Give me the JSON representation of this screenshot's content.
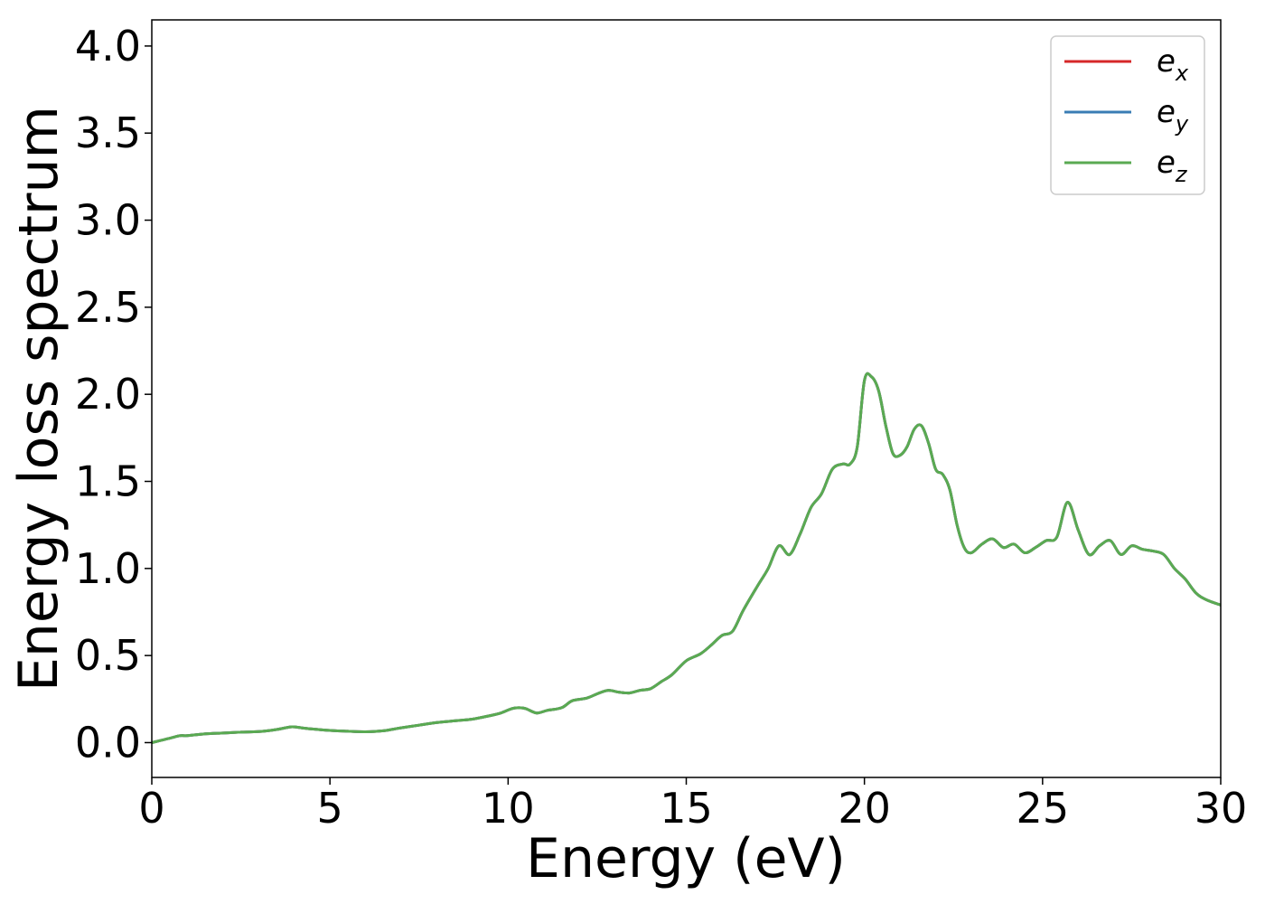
{
  "chart_data": {
    "type": "line",
    "xlabel": "Energy (eV)",
    "ylabel": "Energy loss spectrum",
    "xlim": [
      0,
      30
    ],
    "ylim": [
      -0.2,
      4.15
    ],
    "xticks": [
      0,
      5,
      10,
      15,
      20,
      25,
      30
    ],
    "xtick_labels": [
      "0",
      "5",
      "10",
      "15",
      "20",
      "25",
      "30"
    ],
    "yticks": [
      0.0,
      0.5,
      1.0,
      1.5,
      2.0,
      2.5,
      3.0,
      3.5,
      4.0
    ],
    "ytick_labels": [
      "0.0",
      "0.5",
      "1.0",
      "1.5",
      "2.0",
      "2.5",
      "3.0",
      "3.5",
      "4.0"
    ],
    "grid": false,
    "legend_position": "top-right",
    "x": [
      0,
      0.5,
      0.8,
      1.0,
      1.5,
      2.0,
      2.5,
      3.0,
      3.5,
      3.9,
      4.2,
      4.5,
      5.0,
      5.5,
      6.0,
      6.5,
      7.0,
      7.5,
      8.0,
      8.5,
      9.0,
      9.5,
      9.8,
      10.1,
      10.3,
      10.5,
      10.8,
      11.1,
      11.5,
      11.8,
      12.2,
      12.5,
      12.8,
      13.1,
      13.4,
      13.7,
      14.0,
      14.3,
      14.6,
      15.0,
      15.4,
      15.7,
      16.0,
      16.3,
      16.6,
      17.0,
      17.3,
      17.6,
      17.9,
      18.2,
      18.5,
      18.8,
      19.1,
      19.4,
      19.6,
      19.8,
      20.0,
      20.2,
      20.4,
      20.6,
      20.8,
      21.0,
      21.2,
      21.4,
      21.6,
      21.8,
      22.0,
      22.2,
      22.4,
      22.6,
      22.8,
      23.0,
      23.3,
      23.6,
      23.9,
      24.2,
      24.5,
      24.8,
      25.1,
      25.4,
      25.7,
      26.0,
      26.3,
      26.6,
      26.9,
      27.2,
      27.5,
      27.8,
      28.1,
      28.4,
      28.7,
      29.0,
      29.3,
      29.6,
      30.0
    ],
    "series": [
      {
        "name": "e_x",
        "color": "#d62728",
        "values": [
          0.0,
          0.025,
          0.04,
          0.04,
          0.05,
          0.055,
          0.06,
          0.063,
          0.075,
          0.09,
          0.085,
          0.078,
          0.07,
          0.065,
          0.062,
          0.068,
          0.085,
          0.1,
          0.115,
          0.125,
          0.135,
          0.155,
          0.17,
          0.195,
          0.2,
          0.195,
          0.17,
          0.185,
          0.2,
          0.24,
          0.255,
          0.28,
          0.3,
          0.29,
          0.285,
          0.3,
          0.31,
          0.35,
          0.39,
          0.47,
          0.51,
          0.56,
          0.615,
          0.64,
          0.76,
          0.9,
          1.0,
          1.13,
          1.08,
          1.2,
          1.35,
          1.43,
          1.57,
          1.6,
          1.6,
          1.7,
          2.08,
          2.1,
          2.02,
          1.82,
          1.66,
          1.65,
          1.7,
          1.8,
          1.82,
          1.72,
          1.57,
          1.54,
          1.45,
          1.25,
          1.12,
          1.09,
          1.14,
          1.17,
          1.12,
          1.14,
          1.09,
          1.12,
          1.16,
          1.18,
          1.38,
          1.22,
          1.08,
          1.13,
          1.16,
          1.08,
          1.13,
          1.11,
          1.1,
          1.08,
          1.0,
          0.94,
          0.86,
          0.82,
          0.79
        ]
      },
      {
        "name": "e_y",
        "color": "#3a7db4",
        "values": [
          0.0,
          0.025,
          0.04,
          0.04,
          0.05,
          0.055,
          0.06,
          0.063,
          0.075,
          0.09,
          0.085,
          0.078,
          0.07,
          0.065,
          0.062,
          0.068,
          0.085,
          0.1,
          0.115,
          0.125,
          0.135,
          0.155,
          0.17,
          0.195,
          0.2,
          0.195,
          0.17,
          0.185,
          0.2,
          0.24,
          0.255,
          0.28,
          0.3,
          0.29,
          0.285,
          0.3,
          0.31,
          0.35,
          0.39,
          0.47,
          0.51,
          0.56,
          0.615,
          0.64,
          0.76,
          0.9,
          1.0,
          1.13,
          1.08,
          1.2,
          1.35,
          1.43,
          1.57,
          1.6,
          1.6,
          1.7,
          2.08,
          2.1,
          2.02,
          1.82,
          1.66,
          1.65,
          1.7,
          1.8,
          1.82,
          1.72,
          1.57,
          1.54,
          1.45,
          1.25,
          1.12,
          1.09,
          1.14,
          1.17,
          1.12,
          1.14,
          1.09,
          1.12,
          1.16,
          1.18,
          1.38,
          1.22,
          1.08,
          1.13,
          1.16,
          1.08,
          1.13,
          1.11,
          1.1,
          1.08,
          1.0,
          0.94,
          0.86,
          0.82,
          0.79
        ]
      },
      {
        "name": "e_z",
        "color": "#5aaa52",
        "values": [
          0.0,
          0.025,
          0.04,
          0.04,
          0.05,
          0.055,
          0.06,
          0.063,
          0.075,
          0.09,
          0.085,
          0.078,
          0.07,
          0.065,
          0.062,
          0.068,
          0.085,
          0.1,
          0.115,
          0.125,
          0.135,
          0.155,
          0.17,
          0.195,
          0.2,
          0.195,
          0.17,
          0.185,
          0.2,
          0.24,
          0.255,
          0.28,
          0.3,
          0.29,
          0.285,
          0.3,
          0.31,
          0.35,
          0.39,
          0.47,
          0.51,
          0.56,
          0.615,
          0.64,
          0.76,
          0.9,
          1.0,
          1.13,
          1.08,
          1.2,
          1.35,
          1.43,
          1.57,
          1.6,
          1.6,
          1.7,
          2.08,
          2.1,
          2.02,
          1.82,
          1.66,
          1.65,
          1.7,
          1.8,
          1.82,
          1.72,
          1.57,
          1.54,
          1.45,
          1.25,
          1.12,
          1.09,
          1.14,
          1.17,
          1.12,
          1.14,
          1.09,
          1.12,
          1.16,
          1.18,
          1.38,
          1.22,
          1.08,
          1.13,
          1.16,
          1.08,
          1.13,
          1.11,
          1.1,
          1.08,
          1.0,
          0.94,
          0.86,
          0.82,
          0.79
        ]
      }
    ],
    "legend": [
      {
        "base": "e",
        "sub": "x",
        "color": "#d62728"
      },
      {
        "base": "e",
        "sub": "y",
        "color": "#3a7db4"
      },
      {
        "base": "e",
        "sub": "z",
        "color": "#5aaa52"
      }
    ]
  }
}
